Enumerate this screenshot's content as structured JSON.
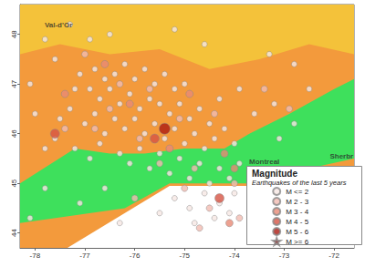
{
  "chart_data": {
    "type": "scatter",
    "title": "Magnitude",
    "subtitle": "Earthquakes of the last 5 years",
    "xlim": [
      -78.3,
      -71.6
    ],
    "ylim": [
      43.7,
      48.6
    ],
    "xticks": [
      -78,
      -77,
      -76,
      -75,
      -74,
      -73,
      -72
    ],
    "yticks": [
      44,
      45,
      46,
      47,
      48
    ],
    "grid": false,
    "legend": "lower right",
    "areas": [
      {
        "color": "#f39a3c",
        "points": [
          [
            -78.3,
            43.7
          ],
          [
            -71.6,
            43.7
          ],
          [
            -71.6,
            48.6
          ],
          [
            -78.3,
            48.6
          ]
        ]
      },
      {
        "color": "#f4c23a",
        "points": [
          [
            -78.3,
            48.6
          ],
          [
            -78.3,
            47.6
          ],
          [
            -77.5,
            47.8
          ],
          [
            -76.5,
            47.6
          ],
          [
            -75.5,
            47.7
          ],
          [
            -74.5,
            47.3
          ],
          [
            -73.5,
            47.5
          ],
          [
            -72.5,
            47.8
          ],
          [
            -71.6,
            47.6
          ],
          [
            -71.6,
            48.6
          ]
        ]
      },
      {
        "color": "#3ee05c",
        "points": [
          [
            -78.3,
            45.0
          ],
          [
            -77.2,
            45.7
          ],
          [
            -76.5,
            45.6
          ],
          [
            -75.8,
            45.6
          ],
          [
            -75.0,
            45.7
          ],
          [
            -74.2,
            45.7
          ],
          [
            -73.7,
            46.0
          ],
          [
            -72.9,
            46.4
          ],
          [
            -72.0,
            46.9
          ],
          [
            -71.6,
            47.1
          ],
          [
            -71.6,
            45.5
          ],
          [
            -72.5,
            45.3
          ],
          [
            -73.0,
            45.1
          ],
          [
            -73.3,
            45.0
          ],
          [
            -75.3,
            45.0
          ],
          [
            -76.2,
            44.5
          ],
          [
            -78.3,
            44.2
          ]
        ]
      },
      {
        "color": "#ffffff",
        "points": [
          [
            -77.35,
            43.7
          ],
          [
            -75.3,
            44.95
          ],
          [
            -71.6,
            44.95
          ],
          [
            -71.6,
            43.7
          ]
        ]
      }
    ],
    "annotations": [
      {
        "text": "Val-d'Or",
        "x": -77.53,
        "y": 48.18
      },
      {
        "text": "Montreal",
        "x": -73.4,
        "y": 45.44
      },
      {
        "text": "Sherbr",
        "x": -71.85,
        "y": 45.55
      }
    ],
    "series": [
      {
        "name": "M <= 2",
        "color": "#f6e7e4",
        "marker": "circle",
        "values": [
          [
            -77.8,
            47.9
          ],
          [
            -77.3,
            48.2
          ],
          [
            -76.9,
            47.9
          ],
          [
            -76.5,
            48.0
          ],
          [
            -75.2,
            48.1
          ],
          [
            -74.6,
            47.8
          ],
          [
            -73.3,
            47.6
          ],
          [
            -72.8,
            47.4
          ],
          [
            -77.1,
            47.2
          ],
          [
            -76.8,
            47.3
          ],
          [
            -76.6,
            47.1
          ],
          [
            -76.4,
            47.2
          ],
          [
            -76.2,
            47.4
          ],
          [
            -76.0,
            47.1
          ],
          [
            -75.8,
            47.3
          ],
          [
            -75.6,
            47.0
          ],
          [
            -75.4,
            47.2
          ],
          [
            -75.2,
            46.9
          ],
          [
            -75.0,
            47.0
          ],
          [
            -76.9,
            46.9
          ],
          [
            -76.7,
            46.7
          ],
          [
            -76.5,
            46.9
          ],
          [
            -76.3,
            46.6
          ],
          [
            -76.1,
            46.8
          ],
          [
            -75.9,
            46.5
          ],
          [
            -75.7,
            46.7
          ],
          [
            -75.5,
            46.6
          ],
          [
            -75.3,
            46.4
          ],
          [
            -75.1,
            46.6
          ],
          [
            -74.9,
            46.3
          ],
          [
            -74.7,
            46.5
          ],
          [
            -74.5,
            46.2
          ],
          [
            -77.3,
            46.5
          ],
          [
            -77.5,
            46.3
          ],
          [
            -77.0,
            46.2
          ],
          [
            -76.8,
            46.4
          ],
          [
            -76.6,
            46.0
          ],
          [
            -76.4,
            46.3
          ],
          [
            -76.2,
            46.1
          ],
          [
            -76.0,
            46.3
          ],
          [
            -75.8,
            46.0
          ],
          [
            -75.6,
            46.2
          ],
          [
            -75.4,
            45.9
          ],
          [
            -75.2,
            46.1
          ],
          [
            -75.0,
            45.8
          ],
          [
            -74.8,
            46.0
          ],
          [
            -74.6,
            45.7
          ],
          [
            -74.4,
            45.9
          ],
          [
            -74.2,
            46.1
          ],
          [
            -74.0,
            45.8
          ],
          [
            -77.8,
            45.7
          ],
          [
            -77.6,
            45.9
          ],
          [
            -77.2,
            45.7
          ],
          [
            -76.9,
            45.5
          ],
          [
            -76.7,
            45.8
          ],
          [
            -76.3,
            45.6
          ],
          [
            -76.1,
            45.4
          ],
          [
            -75.9,
            45.7
          ],
          [
            -75.7,
            45.3
          ],
          [
            -75.5,
            45.6
          ],
          [
            -75.3,
            45.2
          ],
          [
            -75.1,
            45.5
          ],
          [
            -74.9,
            45.1
          ],
          [
            -74.7,
            45.4
          ],
          [
            -74.5,
            45.0
          ],
          [
            -74.3,
            45.3
          ],
          [
            -74.1,
            45.1
          ],
          [
            -73.9,
            45.4
          ],
          [
            -78.0,
            46.4
          ],
          [
            -78.1,
            47.0
          ],
          [
            -77.6,
            47.5
          ],
          [
            -77.2,
            46.9
          ],
          [
            -74.3,
            46.7
          ],
          [
            -73.9,
            46.9
          ],
          [
            -73.6,
            46.4
          ],
          [
            -73.2,
            46.6
          ],
          [
            -72.8,
            46.2
          ],
          [
            -72.5,
            46.9
          ],
          [
            -73.1,
            45.9
          ],
          [
            -75.2,
            44.7
          ],
          [
            -74.9,
            44.5
          ],
          [
            -74.6,
            44.8
          ],
          [
            -74.3,
            44.6
          ],
          [
            -74.0,
            44.8
          ],
          [
            -74.1,
            44.4
          ],
          [
            -75.5,
            44.4
          ],
          [
            -74.8,
            44.2
          ],
          [
            -74.4,
            44.3
          ],
          [
            -76.3,
            44.2
          ],
          [
            -76.6,
            44.9
          ],
          [
            -77.1,
            44.6
          ],
          [
            -77.8,
            44.9
          ],
          [
            -78.1,
            44.3
          ]
        ]
      },
      {
        "name": "M 2 - 3",
        "color": "#f2bcb2",
        "marker": "circle",
        "values": [
          [
            -77.0,
            47.6
          ],
          [
            -76.3,
            47.0
          ],
          [
            -75.7,
            46.9
          ],
          [
            -75.1,
            46.3
          ],
          [
            -76.5,
            46.5
          ],
          [
            -74.4,
            46.4
          ],
          [
            -75.5,
            45.4
          ],
          [
            -74.8,
            45.3
          ],
          [
            -74.0,
            45.0
          ],
          [
            -73.9,
            44.3
          ],
          [
            -74.5,
            44.5
          ],
          [
            -75.9,
            45.9
          ],
          [
            -76.8,
            46.1
          ],
          [
            -77.4,
            46.1
          ],
          [
            -73.4,
            46.9
          ],
          [
            -72.9,
            46.5
          ],
          [
            -74.7,
            44.1
          ],
          [
            -75.0,
            44.9
          ],
          [
            -76.0,
            44.7
          ]
        ]
      },
      {
        "name": "M 3 - 4",
        "color": "#e88a76",
        "marker": "circle",
        "values": [
          [
            -77.4,
            46.8
          ],
          [
            -76.1,
            46.6
          ],
          [
            -75.3,
            45.7
          ],
          [
            -74.2,
            45.6
          ],
          [
            -74.0,
            45.3
          ],
          [
            -74.1,
            44.2
          ],
          [
            -76.6,
            47.4
          ],
          [
            -74.9,
            46.8
          ]
        ]
      },
      {
        "name": "M 4 - 5",
        "color": "#d65444",
        "marker": "circle",
        "values": [
          [
            -75.6,
            45.9
          ],
          [
            -74.3,
            44.7
          ],
          [
            -77.6,
            46.0
          ]
        ]
      },
      {
        "name": "M 5 - 6",
        "color": "#ad1a12",
        "marker": "circle",
        "values": [
          [
            -75.4,
            46.1
          ]
        ]
      },
      {
        "name": "M >= 6",
        "color": "#8a0a0a",
        "marker": "star",
        "values": []
      }
    ]
  }
}
